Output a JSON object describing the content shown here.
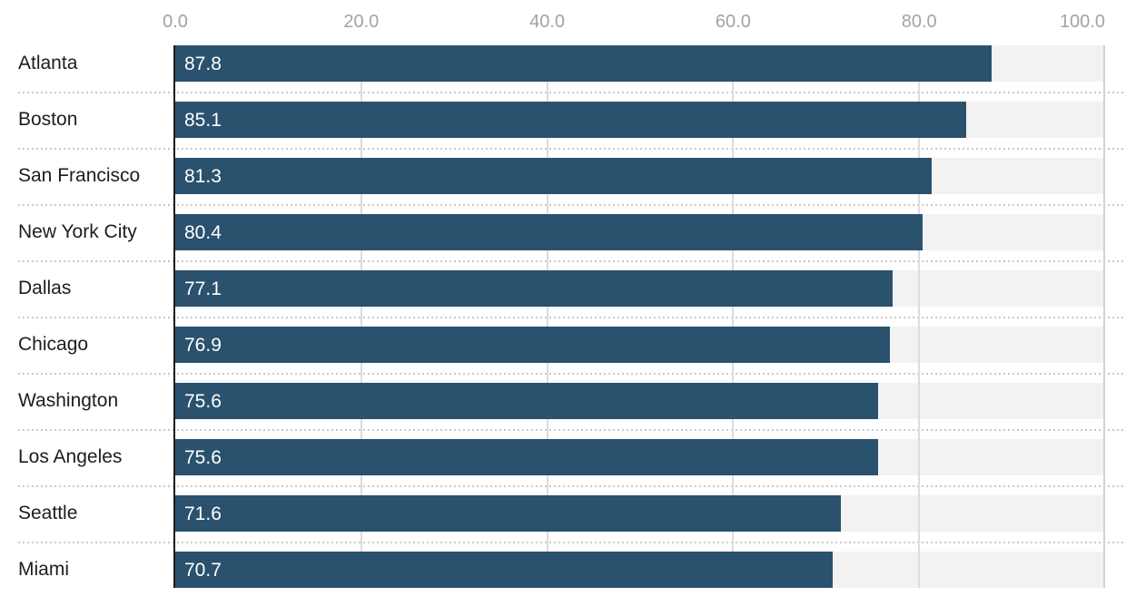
{
  "chart_data": {
    "type": "bar",
    "orientation": "horizontal",
    "title": "",
    "xlabel": "",
    "ylabel": "",
    "categories": [
      "Atlanta",
      "Boston",
      "San Francisco",
      "New York City",
      "Dallas",
      "Chicago",
      "Washington",
      "Los Angeles",
      "Seattle",
      "Miami"
    ],
    "values": [
      87.8,
      85.1,
      81.3,
      80.4,
      77.1,
      76.9,
      75.6,
      75.6,
      71.6,
      70.7
    ],
    "value_labels": [
      "87.8",
      "85.1",
      "81.3",
      "80.4",
      "77.1",
      "76.9",
      "75.6",
      "75.6",
      "71.6",
      "70.7"
    ],
    "xlim": [
      0,
      100
    ],
    "x_ticks": [
      0,
      20,
      40,
      60,
      80,
      100
    ],
    "x_tick_labels": [
      "0.0",
      "20.0",
      "40.0",
      "60.0",
      "80.0",
      "100.0"
    ],
    "grid": true,
    "legend": false,
    "value_labels_position": "inside-left",
    "colors": {
      "bar": "#2a516e",
      "track": "#f2f2f2",
      "gridline": "#dcdcdc",
      "gridline_end": "#d2d2d2",
      "axis_line": "#1b1b1b",
      "tick_label": "#a3a3a3",
      "category_label": "#1d1d1d",
      "value_label": "#ffffff",
      "separator": "#c9c9c9",
      "background": "#ffffff"
    }
  }
}
